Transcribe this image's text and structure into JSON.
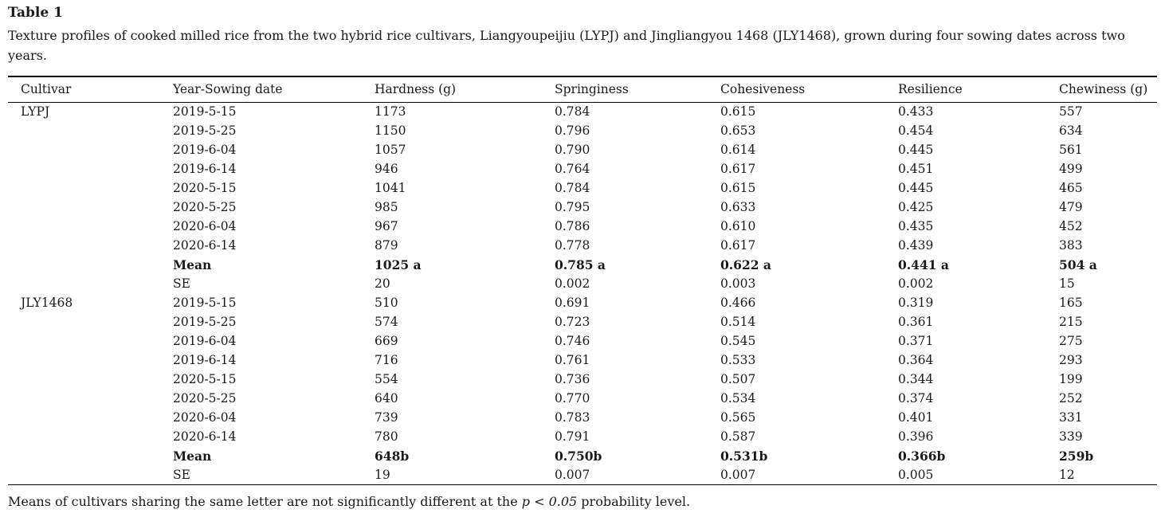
{
  "colors": {
    "text": "#1a1a1a",
    "rule": "#000000",
    "background": "#ffffff"
  },
  "table": {
    "title": "Table 1",
    "caption": "Texture profiles of cooked milled rice from the two hybrid rice cultivars, Liangyoupeijiu (LYPJ) and Jingliangyou 1468 (JLY1468), grown during four sowing dates across two years.",
    "columns": [
      "Cultivar",
      "Year-Sowing date",
      "Hardness (g)",
      "Springiness",
      "Cohesiveness",
      "Resilience",
      "Chewiness (g)"
    ],
    "rows": [
      {
        "cells": [
          "LYPJ",
          "2019-5-15",
          "1173",
          "0.784",
          "0.615",
          "0.433",
          "557"
        ],
        "bold": false
      },
      {
        "cells": [
          "",
          "2019-5-25",
          "1150",
          "0.796",
          "0.653",
          "0.454",
          "634"
        ],
        "bold": false
      },
      {
        "cells": [
          "",
          "2019-6-04",
          "1057",
          "0.790",
          "0.614",
          "0.445",
          "561"
        ],
        "bold": false
      },
      {
        "cells": [
          "",
          "2019-6-14",
          "946",
          "0.764",
          "0.617",
          "0.451",
          "499"
        ],
        "bold": false
      },
      {
        "cells": [
          "",
          "2020-5-15",
          "1041",
          "0.784",
          "0.615",
          "0.445",
          "465"
        ],
        "bold": false
      },
      {
        "cells": [
          "",
          "2020-5-25",
          "985",
          "0.795",
          "0.633",
          "0.425",
          "479"
        ],
        "bold": false
      },
      {
        "cells": [
          "",
          "2020-6-04",
          "967",
          "0.786",
          "0.610",
          "0.435",
          "452"
        ],
        "bold": false
      },
      {
        "cells": [
          "",
          "2020-6-14",
          "879",
          "0.778",
          "0.617",
          "0.439",
          "383"
        ],
        "bold": false
      },
      {
        "cells": [
          "",
          "Mean",
          "1025 a",
          "0.785 a",
          "0.622 a",
          "0.441 a",
          "504 a"
        ],
        "bold": true
      },
      {
        "cells": [
          "",
          "SE",
          "20",
          "0.002",
          "0.003",
          "0.002",
          "15"
        ],
        "bold": false
      },
      {
        "cells": [
          "JLY1468",
          "2019-5-15",
          "510",
          "0.691",
          "0.466",
          "0.319",
          "165"
        ],
        "bold": false
      },
      {
        "cells": [
          "",
          "2019-5-25",
          "574",
          "0.723",
          "0.514",
          "0.361",
          "215"
        ],
        "bold": false
      },
      {
        "cells": [
          "",
          "2019-6-04",
          "669",
          "0.746",
          "0.545",
          "0.371",
          "275"
        ],
        "bold": false
      },
      {
        "cells": [
          "",
          "2019-6-14",
          "716",
          "0.761",
          "0.533",
          "0.364",
          "293"
        ],
        "bold": false
      },
      {
        "cells": [
          "",
          "2020-5-15",
          "554",
          "0.736",
          "0.507",
          "0.344",
          "199"
        ],
        "bold": false
      },
      {
        "cells": [
          "",
          "2020-5-25",
          "640",
          "0.770",
          "0.534",
          "0.374",
          "252"
        ],
        "bold": false
      },
      {
        "cells": [
          "",
          "2020-6-04",
          "739",
          "0.783",
          "0.565",
          "0.401",
          "331"
        ],
        "bold": false
      },
      {
        "cells": [
          "",
          "2020-6-14",
          "780",
          "0.791",
          "0.587",
          "0.396",
          "339"
        ],
        "bold": false
      },
      {
        "cells": [
          "",
          "Mean",
          "648b",
          "0.750b",
          "0.531b",
          "0.366b",
          "259b"
        ],
        "bold": true
      },
      {
        "cells": [
          "",
          "SE",
          "19",
          "0.007",
          "0.007",
          "0.005",
          "12"
        ],
        "bold": false
      }
    ],
    "footnote": {
      "pre": "Means of cultivars sharing the same letter are not significantly different at the ",
      "italic": "p < 0.05",
      "post": " probability level."
    }
  }
}
